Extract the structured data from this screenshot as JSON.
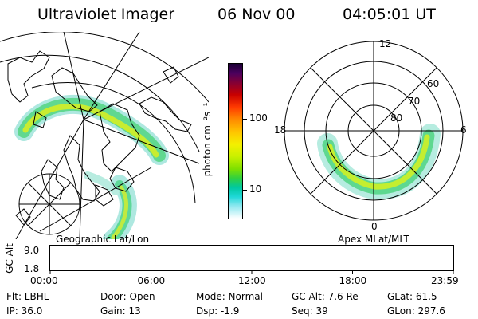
{
  "header": {
    "instrument": "Ultraviolet Imager",
    "date": "06 Nov 00",
    "time": "04:05:01 UT"
  },
  "colorbar": {
    "unit": "photon cm⁻²s⁻¹",
    "ticks": [
      {
        "label": "100",
        "value": 100
      },
      {
        "label": "10",
        "value": 10
      }
    ]
  },
  "polar_plot": {
    "hour_labels": {
      "top": "12",
      "left": "18",
      "right": "6",
      "bottom": "0"
    },
    "lat_labels": [
      "60",
      "70",
      "80"
    ]
  },
  "projection_labels": {
    "left": "Geographic Lat/Lon",
    "right": "Apex MLat/MLT"
  },
  "timeline": {
    "ylabel": "GC Alt",
    "ymax": "9.0",
    "ymin": "1.8",
    "xticks": [
      "00:00",
      "06:00",
      "12:00",
      "18:00",
      "23:59"
    ],
    "current_time_hours": 4.08,
    "marker_color": "#cc0000"
  },
  "info": {
    "row1": {
      "flt": "Flt: LBHL",
      "door": "Door: Open",
      "mode": "Mode: Normal",
      "gc_alt": "GC Alt: 7.6 Re",
      "glat": "GLat:  61.5"
    },
    "row2": {
      "ip": "IP: 36.0",
      "gain": "Gain: 13",
      "dsp": "Dsp:   -1.9",
      "seq": "Seq: 39",
      "glon": "GLon: 297.6"
    }
  }
}
